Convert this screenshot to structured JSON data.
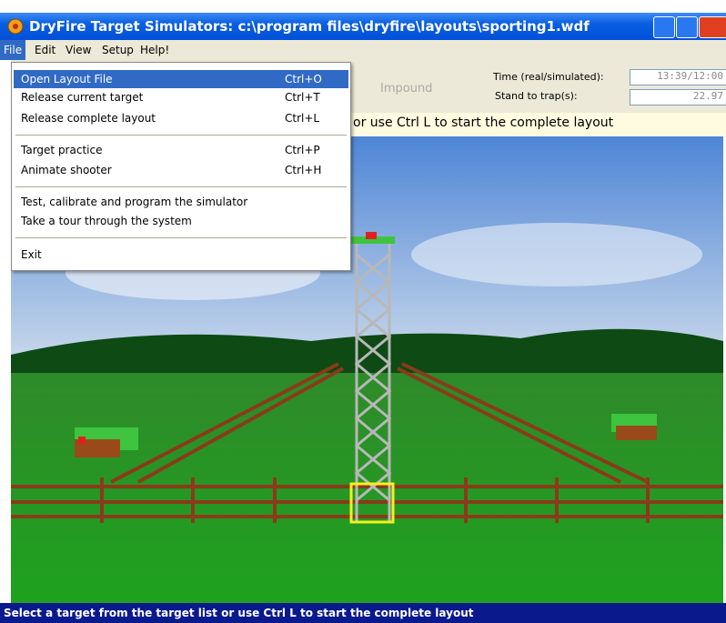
{
  "window_title": "DryFire Target Simulators: c:\\program files\\dryfire\\layouts\\sporting1.wdf",
  "menu_bar": [
    "File",
    "Edit",
    "View",
    "Setup",
    "Help!"
  ],
  "file_menu": [
    {
      "label": "Open Layout File",
      "shortcut": "Ctrl+O"
    },
    {
      "label": "Release current target",
      "shortcut": "Ctrl+T"
    },
    {
      "label": "Release complete layout",
      "shortcut": "Ctrl+L"
    },
    {
      "label": "Target practice",
      "shortcut": "Ctrl+P"
    },
    {
      "label": "Animate shooter",
      "shortcut": "Ctrl+H"
    },
    {
      "label": "Test, calibrate and program the simulator"
    },
    {
      "label": "Take a tour through the system"
    },
    {
      "label": "Exit"
    }
  ],
  "toolbar": {
    "impound": "Impound",
    "time_label": "Time (real/simulated):",
    "time_value": "13:39/12:00",
    "stand_label": "Stand to trap(s):",
    "stand_value": "22.97"
  },
  "info_bar": "or use Ctrl L to start the complete layout",
  "status_bar": "Select a target from the target list or use Ctrl L to start the complete layout"
}
